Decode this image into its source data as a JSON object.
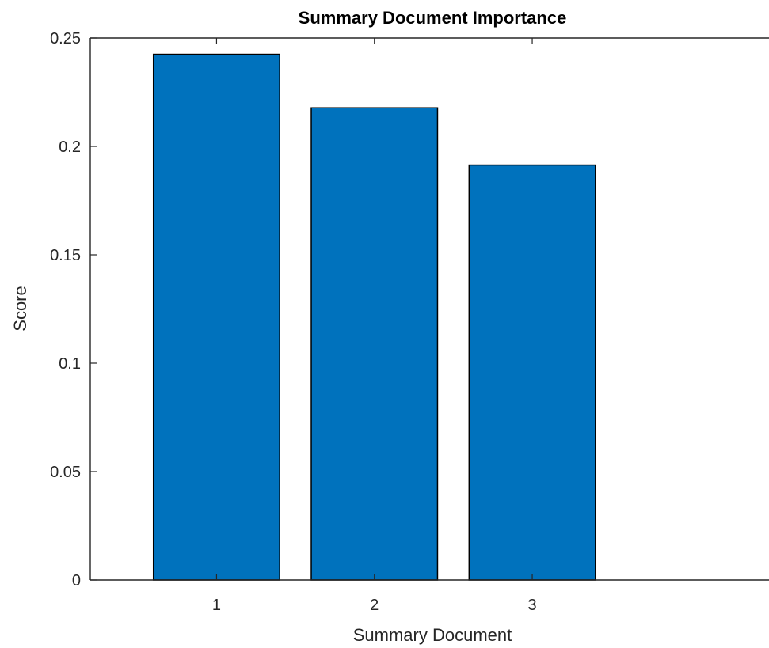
{
  "chart_data": {
    "type": "bar",
    "title": "Summary Document Importance",
    "xlabel": "Summary Document",
    "ylabel": "Score",
    "categories": [
      "1",
      "2",
      "3"
    ],
    "values": [
      0.2425,
      0.2178,
      0.1914
    ],
    "ylim": [
      0,
      0.25
    ],
    "xlim": [
      0.2,
      4.5
    ],
    "yticks": [
      "0",
      "0.05",
      "0.1",
      "0.15",
      "0.2",
      "0.25"
    ],
    "bar_color": "#0072BD",
    "grid": false
  }
}
